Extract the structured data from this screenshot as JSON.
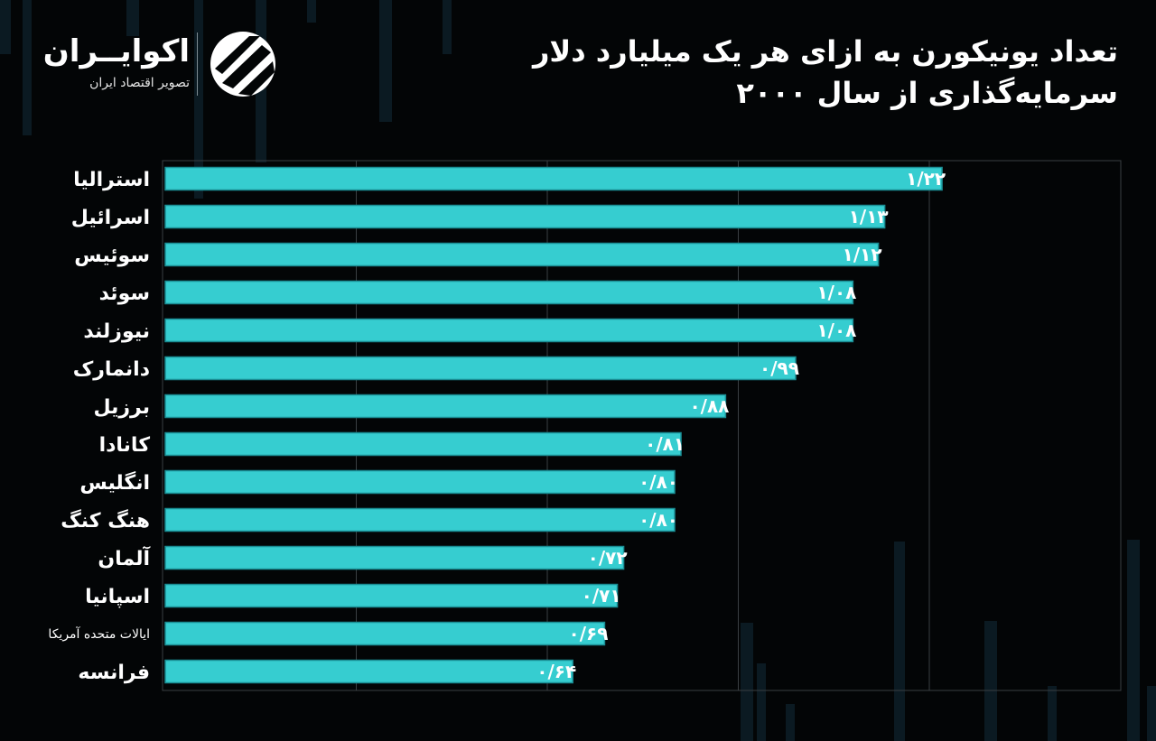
{
  "header": {
    "title_line1": "تعداد یونیکورن به ازای هر یک میلیارد دلار",
    "title_line2": "سرمایه‌گذاری از سال ۲۰۰۰"
  },
  "brand": {
    "name": "اکوایــران",
    "tagline": "تصویر اقتصاد ایران",
    "logo_icon": "ecoiran-logo-icon"
  },
  "colors": {
    "background": "#030506",
    "bar_fill": "#36cdd0",
    "bar_stroke": "#1a8d93",
    "grid": "#3a3f42",
    "text": "#ffffff"
  },
  "chart_data": {
    "type": "bar",
    "orientation": "horizontal",
    "title": "تعداد یونیکورن به ازای هر یک میلیارد دلار سرمایه‌گذاری از سال ۲۰۰۰",
    "categories": [
      "استرالیا",
      "اسرائیل",
      "سوئیس",
      "سوئد",
      "نیوزلند",
      "دانمارک",
      "برزیل",
      "کانادا",
      "انگلیس",
      "هنگ کنگ",
      "آلمان",
      "اسپانیا",
      "ایالات متحده آمریکا",
      "فرانسه"
    ],
    "values": [
      1.22,
      1.13,
      1.12,
      1.08,
      1.08,
      0.99,
      0.88,
      0.81,
      0.8,
      0.8,
      0.72,
      0.71,
      0.69,
      0.64
    ],
    "value_labels": [
      "۱/۲۲",
      "۱/۱۳",
      "۱/۱۲",
      "۱/۰۸",
      "۱/۰۸",
      "۰/۹۹",
      "۰/۸۸",
      "۰/۸۱",
      "۰/۸۰",
      "۰/۸۰",
      "۰/۷۲",
      "۰/۷۱",
      "۰/۶۹",
      "۰/۶۴"
    ],
    "xlim": [
      0,
      1.5
    ],
    "grid": true,
    "xlabel": "",
    "ylabel": ""
  }
}
